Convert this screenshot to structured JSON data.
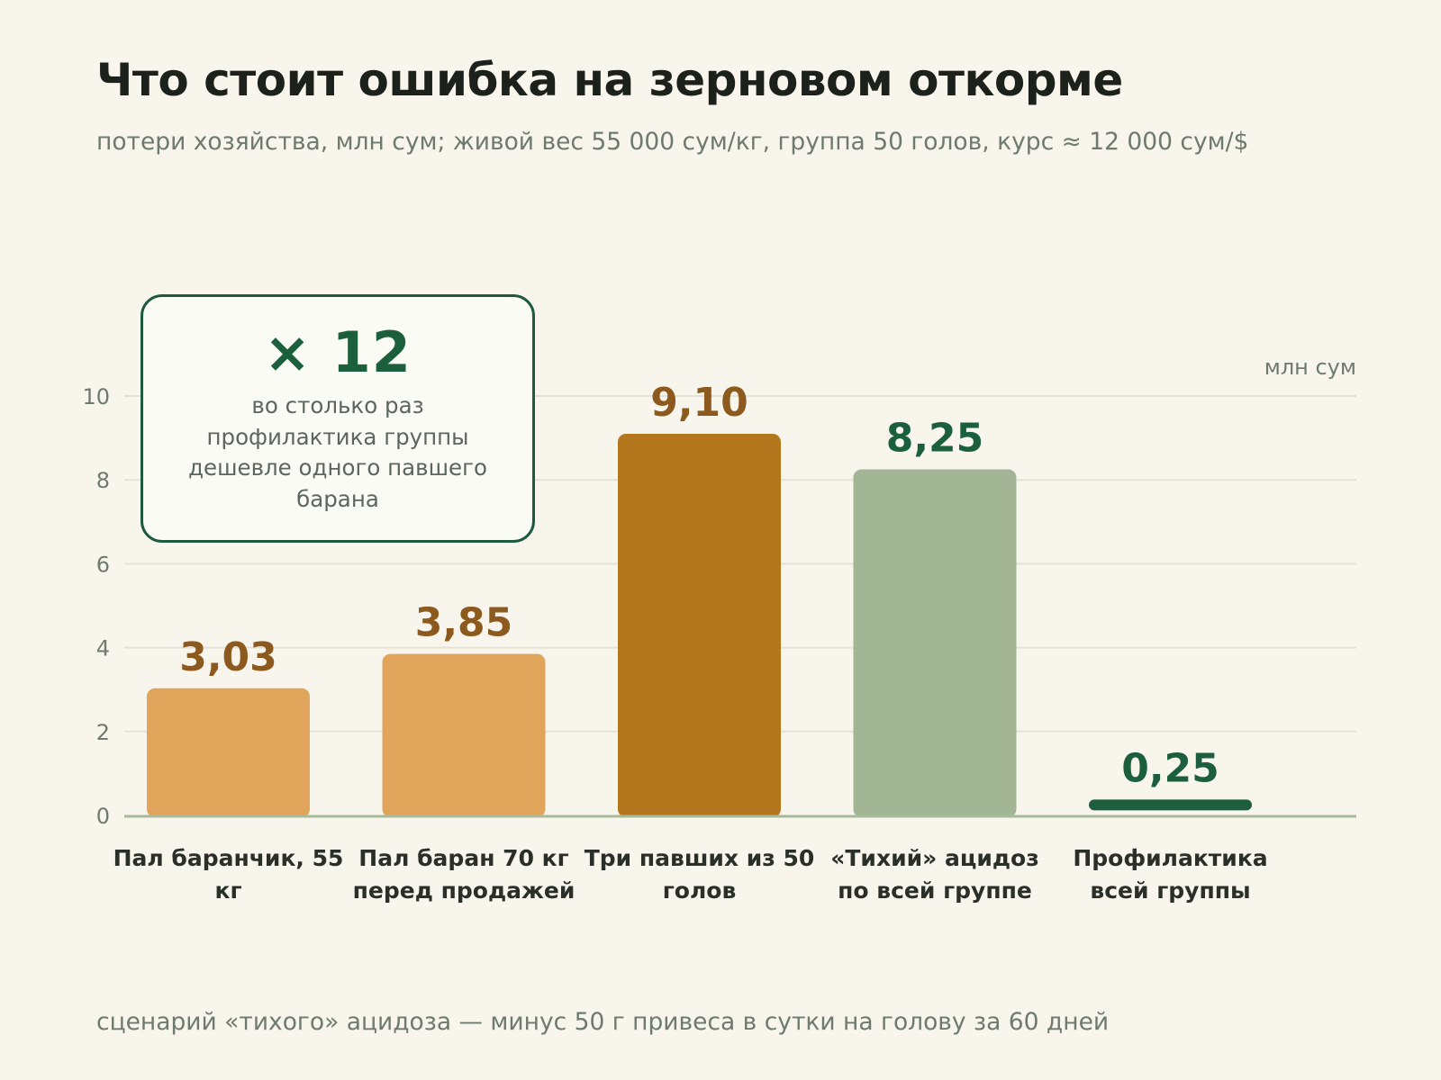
{
  "title": "Что стоит ошибка на зерновом откорме",
  "subtitle": "потери хозяйства, млн сум; живой вес 55 000 сум/кг, группа 50 голов, курс ≈ 12 000 сум/$",
  "footnote": "сценарий «тихого» ацидоза — минус 50 г привеса в сутки на голову за 60 дней",
  "callout": {
    "value": "× 12",
    "text": "во столько раз профилактика группы дешевле одного павшего барана"
  },
  "chart_data": {
    "type": "bar",
    "unit_label": "млн сум",
    "ylim": [
      0,
      10
    ],
    "yticks": [
      0,
      2,
      4,
      6,
      8,
      10
    ],
    "grid": true,
    "categories": [
      "Пал баранчик, 55 кг",
      "Пал баран 70 кг перед продажей",
      "Три павших из 50 голов",
      "«Тихий» ацидоз по всей группе",
      "Профилактика всей группы"
    ],
    "category_lines": [
      [
        "Пал баранчик, 55",
        "кг"
      ],
      [
        "Пал баран 70 кг",
        "перед продажей"
      ],
      [
        "Три павших из 50",
        "голов"
      ],
      [
        "«Тихий» ацидоз",
        "по всей группе"
      ],
      [
        "Профилактика",
        "всей группы"
      ]
    ],
    "values": [
      3.03,
      3.85,
      9.1,
      8.25,
      0.25
    ],
    "value_labels": [
      "3,03",
      "3,85",
      "9,10",
      "8,25",
      "0,25"
    ],
    "bar_colors": [
      "#e0a45a",
      "#e0a45a",
      "#b5771e",
      "#a2b595",
      "#1d5e3d"
    ],
    "label_colors": [
      "#8c5a1e",
      "#8c5a1e",
      "#8c5a1e",
      "#1c5f3d",
      "#1c5f3d"
    ]
  }
}
